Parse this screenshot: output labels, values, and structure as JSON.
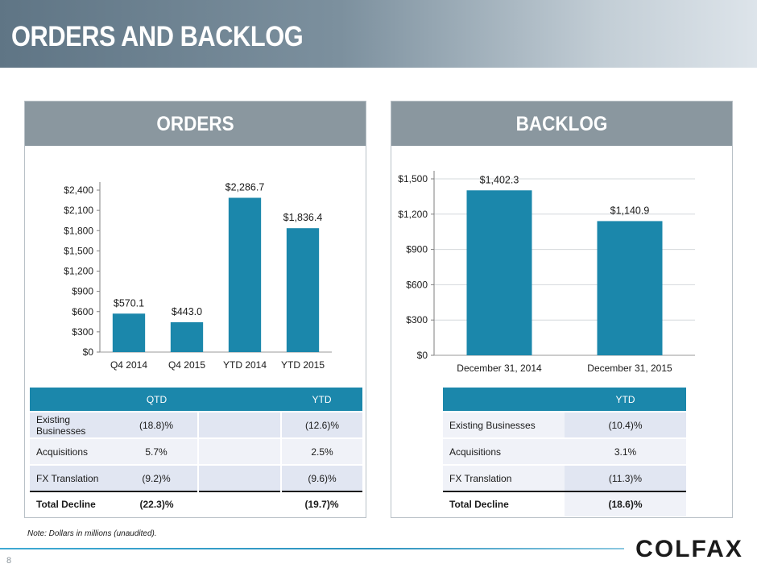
{
  "title": "ORDERS AND BACKLOG",
  "page_number": "8",
  "note": "Note: Dollars in millions (unaudited).",
  "logo_text": "COLFAX",
  "colors": {
    "bar": "#1b87ab",
    "banner": "#6b7f8e",
    "panel_header": "#8a979f",
    "table_header": "#1b87ab"
  },
  "orders": {
    "title": "ORDERS",
    "table": {
      "headers": [
        "",
        "QTD",
        "",
        "YTD"
      ],
      "rows": [
        {
          "label": "Existing Businesses",
          "qtd": "(18.8)%",
          "ytd": "(12.6)%"
        },
        {
          "label": "Acquisitions",
          "qtd": "5.7%",
          "ytd": "2.5%"
        },
        {
          "label": "FX Translation",
          "qtd": "(9.2)%",
          "ytd": "(9.6)%"
        }
      ],
      "total": {
        "label": "Total Decline",
        "qtd": "(22.3)%",
        "ytd": "(19.7)%"
      }
    }
  },
  "backlog": {
    "title": "BACKLOG",
    "table": {
      "headers": [
        "",
        "YTD"
      ],
      "rows": [
        {
          "label": "Existing Businesses",
          "ytd": "(10.4)%"
        },
        {
          "label": "Acquisitions",
          "ytd": "3.1%"
        },
        {
          "label": "FX Translation",
          "ytd": "(11.3)%"
        }
      ],
      "total": {
        "label": "Total Decline",
        "ytd": "(18.6)%"
      }
    }
  },
  "chart_data": [
    {
      "type": "bar",
      "categories": [
        "Q4 2014",
        "Q4 2015",
        "YTD 2014",
        "YTD 2015"
      ],
      "values": [
        570.1,
        443.0,
        2286.7,
        1836.4
      ],
      "data_labels": [
        "$570.1",
        "$443.0",
        "$2,286.7",
        "$1,836.4"
      ],
      "yticks": [
        "$0",
        "$300",
        "$600",
        "$900",
        "$1,200",
        "$1,500",
        "$1,800",
        "$2,100",
        "$2,400"
      ],
      "ylim": [
        0,
        2400
      ],
      "grid": false
    },
    {
      "type": "bar",
      "categories": [
        "December 31, 2014",
        "December 31, 2015"
      ],
      "values": [
        1402.3,
        1140.9
      ],
      "data_labels": [
        "$1,402.3",
        "$1,140.9"
      ],
      "yticks": [
        "$0",
        "$300",
        "$600",
        "$900",
        "$1,200",
        "$1,500"
      ],
      "ylim": [
        0,
        1500
      ],
      "grid": true
    }
  ]
}
